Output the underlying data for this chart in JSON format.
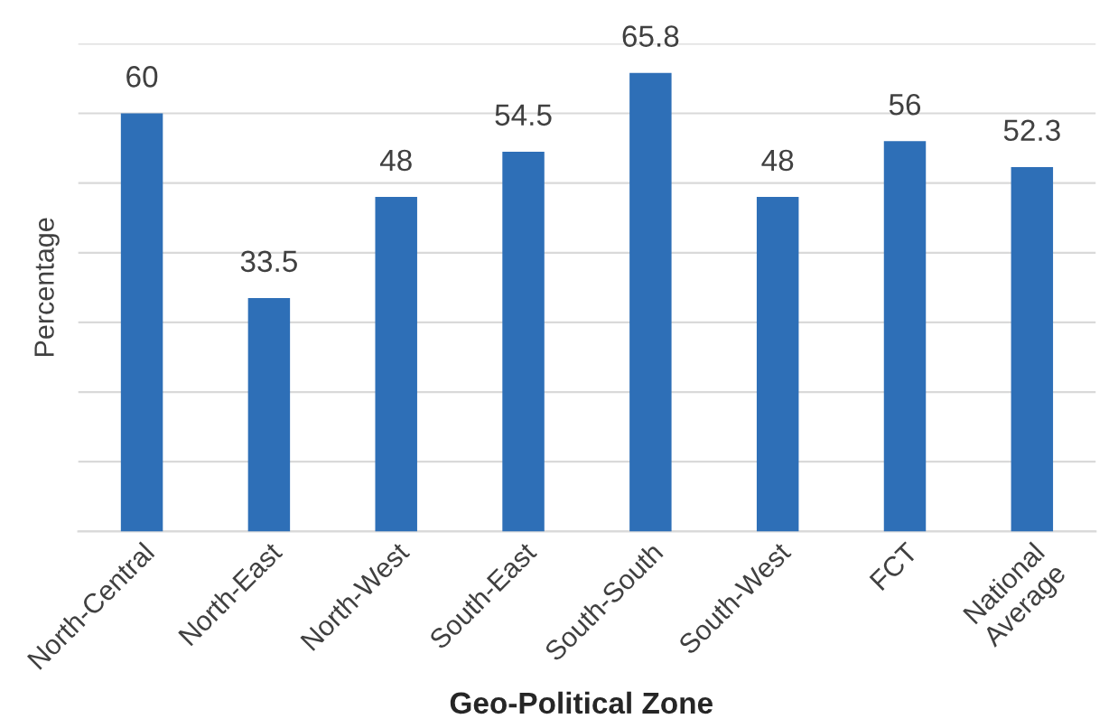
{
  "chart_data": {
    "type": "bar",
    "xlabel": "Geo-Political Zone",
    "ylabel": "Percentage",
    "categories": [
      "North-Central",
      "North-East",
      "North-West",
      "South-East",
      "South-South",
      "South-West",
      "FCT",
      "National\nAverage"
    ],
    "values": [
      60,
      33.5,
      48,
      54.5,
      65.8,
      48,
      56,
      52.3
    ],
    "color": "#2e6fb7",
    "ylim": [
      0,
      70
    ],
    "yticks": [
      {
        "value": 0,
        "label": null
      },
      {
        "value": 10,
        "label": null
      },
      {
        "value": 20,
        "label": null
      },
      {
        "value": 30,
        "label": null
      },
      {
        "value": 40,
        "label": null
      },
      {
        "value": 50,
        "label": null
      },
      {
        "value": 60,
        "label": null
      },
      {
        "value": 70,
        "label": null
      }
    ],
    "grid": "y",
    "data_labels": true,
    "legend": false
  }
}
